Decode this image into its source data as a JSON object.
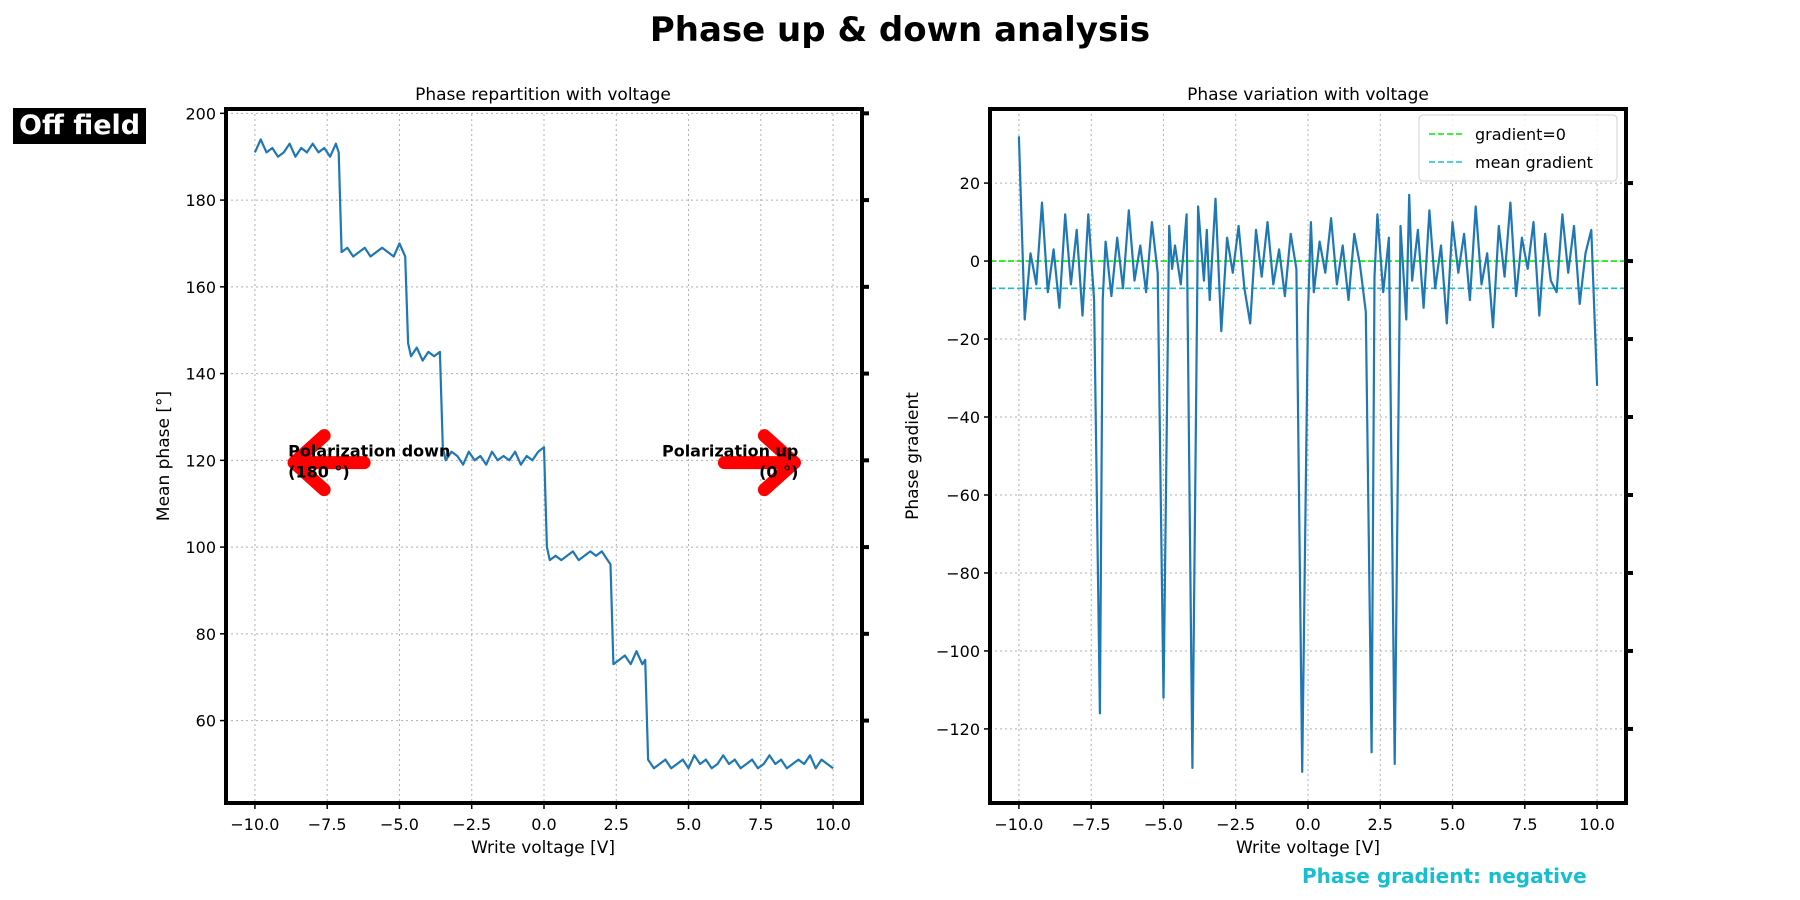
{
  "figure": {
    "title": "Phase up & down analysis",
    "badge": "Off field",
    "footnote": "Phase gradient: negative",
    "footnote_color": "#17becf"
  },
  "chart_data": [
    {
      "type": "line",
      "title": "Phase repartition with voltage",
      "xlabel": "Write voltage [V]",
      "ylabel": "Mean phase [°]",
      "xlim": [
        -11,
        11
      ],
      "ylim": [
        41,
        201
      ],
      "xticks": [
        -10,
        -7.5,
        -5,
        -2.5,
        0,
        2.5,
        5,
        7.5,
        10
      ],
      "xtick_labels": [
        "−10.0",
        "−7.5",
        "−5.0",
        "−2.5",
        "0.0",
        "2.5",
        "5.0",
        "7.5",
        "10.0"
      ],
      "yticks": [
        60,
        80,
        100,
        120,
        140,
        160,
        180,
        200
      ],
      "ytick_labels": [
        "60",
        "80",
        "100",
        "120",
        "140",
        "160",
        "180",
        "200"
      ],
      "grid": true,
      "series": [
        {
          "color": "#1f77b4",
          "x": [
            -10.0,
            -9.8,
            -9.6,
            -9.4,
            -9.2,
            -9.0,
            -8.8,
            -8.6,
            -8.4,
            -8.2,
            -8.0,
            -7.8,
            -7.6,
            -7.4,
            -7.2,
            -7.1,
            -7.0,
            -6.8,
            -6.6,
            -6.4,
            -6.2,
            -6.0,
            -5.8,
            -5.6,
            -5.4,
            -5.2,
            -5.0,
            -4.8,
            -4.7,
            -4.6,
            -4.4,
            -4.2,
            -4.0,
            -3.8,
            -3.6,
            -3.5,
            -3.4,
            -3.2,
            -3.0,
            -2.8,
            -2.6,
            -2.4,
            -2.2,
            -2.0,
            -1.8,
            -1.6,
            -1.4,
            -1.2,
            -1.0,
            -0.8,
            -0.6,
            -0.4,
            -0.2,
            0.0,
            0.1,
            0.2,
            0.4,
            0.6,
            0.8,
            1.0,
            1.2,
            1.4,
            1.6,
            1.8,
            2.0,
            2.2,
            2.3,
            2.4,
            2.6,
            2.8,
            3.0,
            3.2,
            3.4,
            3.5,
            3.6,
            3.8,
            4.0,
            4.2,
            4.4,
            4.6,
            4.8,
            5.0,
            5.2,
            5.4,
            5.6,
            5.8,
            6.0,
            6.2,
            6.4,
            6.6,
            6.8,
            7.0,
            7.2,
            7.4,
            7.6,
            7.8,
            8.0,
            8.2,
            8.4,
            8.6,
            8.8,
            9.0,
            9.2,
            9.4,
            9.6,
            9.8,
            10.0
          ],
          "y": [
            191,
            194,
            191,
            192,
            190,
            191,
            193,
            190,
            192,
            191,
            193,
            191,
            192,
            190,
            193,
            191,
            168,
            169,
            167,
            168,
            169,
            167,
            168,
            169,
            168,
            167,
            170,
            167,
            147,
            144,
            146,
            143,
            145,
            144,
            145,
            123,
            120,
            122,
            121,
            119,
            122,
            120,
            121,
            119,
            122,
            120,
            121,
            120,
            122,
            119,
            121,
            120,
            122,
            123,
            100,
            97,
            98,
            97,
            98,
            99,
            97,
            98,
            99,
            98,
            99,
            97,
            96,
            73,
            74,
            75,
            73,
            76,
            73,
            74,
            51,
            49,
            50,
            51,
            49,
            50,
            51,
            49,
            52,
            50,
            51,
            49,
            50,
            52,
            50,
            51,
            49,
            50,
            51,
            49,
            50,
            52,
            50,
            51,
            49,
            50,
            51,
            50,
            52,
            49,
            51,
            50,
            49
          ]
        }
      ],
      "annotations": [
        {
          "text_lines": [
            "Polarization down",
            "(180 °)"
          ],
          "x": -8.85,
          "y": 122,
          "arrow": "left",
          "arrow_color": "#ff0000"
        },
        {
          "text_lines": [
            "Polarization up",
            "(0 °)"
          ],
          "x": 8.8,
          "y": 122,
          "arrow": "right",
          "arrow_color": "#ff0000"
        }
      ]
    },
    {
      "type": "line",
      "title": "Phase variation with voltage",
      "xlabel": "Write voltage [V]",
      "ylabel": "Phase gradient",
      "xlim": [
        -11,
        11
      ],
      "ylim": [
        -139,
        39
      ],
      "xticks": [
        -10,
        -7.5,
        -5,
        -2.5,
        0,
        2.5,
        5,
        7.5,
        10
      ],
      "xtick_labels": [
        "−10.0",
        "−7.5",
        "−5.0",
        "−2.5",
        "0.0",
        "2.5",
        "5.0",
        "7.5",
        "10.0"
      ],
      "yticks": [
        -120,
        -100,
        -80,
        -60,
        -40,
        -20,
        0,
        20
      ],
      "ytick_labels": [
        "−120",
        "−100",
        "−80",
        "−60",
        "−40",
        "−20",
        "0",
        "20"
      ],
      "grid": true,
      "legend_position": "top-right",
      "series": [
        {
          "color": "#1f77b4",
          "x": [
            -10.0,
            -9.8,
            -9.6,
            -9.4,
            -9.2,
            -9.0,
            -8.8,
            -8.6,
            -8.4,
            -8.2,
            -8.0,
            -7.8,
            -7.6,
            -7.4,
            -7.2,
            -7.1,
            -7.0,
            -6.8,
            -6.6,
            -6.4,
            -6.2,
            -6.0,
            -5.8,
            -5.6,
            -5.4,
            -5.2,
            -5.0,
            -4.8,
            -4.7,
            -4.6,
            -4.4,
            -4.2,
            -4.0,
            -3.8,
            -3.6,
            -3.5,
            -3.4,
            -3.2,
            -3.0,
            -2.8,
            -2.6,
            -2.4,
            -2.2,
            -2.0,
            -1.8,
            -1.6,
            -1.4,
            -1.2,
            -1.0,
            -0.8,
            -0.6,
            -0.4,
            -0.2,
            0.0,
            0.1,
            0.2,
            0.4,
            0.6,
            0.8,
            1.0,
            1.2,
            1.4,
            1.6,
            1.8,
            2.0,
            2.2,
            2.3,
            2.4,
            2.6,
            2.8,
            3.0,
            3.2,
            3.4,
            3.5,
            3.6,
            3.8,
            4.0,
            4.2,
            4.4,
            4.6,
            4.8,
            5.0,
            5.2,
            5.4,
            5.6,
            5.8,
            6.0,
            6.2,
            6.4,
            6.6,
            6.8,
            7.0,
            7.2,
            7.4,
            7.6,
            7.8,
            8.0,
            8.2,
            8.4,
            8.6,
            8.8,
            9.0,
            9.2,
            9.4,
            9.6,
            9.8,
            10.0
          ],
          "y": [
            32,
            -15,
            2,
            -6,
            15,
            -8,
            3,
            -12,
            12,
            -6,
            8,
            -14,
            12,
            -10,
            -116,
            -10,
            5,
            -9,
            6,
            -7,
            13,
            -5,
            4,
            -8,
            10,
            -3,
            -112,
            9,
            -2,
            4,
            -6,
            12,
            -130,
            14,
            -5,
            8,
            -10,
            16,
            -18,
            6,
            -3,
            9,
            -7,
            -16,
            8,
            -4,
            10,
            -6,
            3,
            -9,
            7,
            -2,
            -131,
            -13,
            10,
            -8,
            5,
            -3,
            11,
            -6,
            4,
            -10,
            7,
            -1,
            -13,
            -126,
            -4,
            12,
            -8,
            6,
            -129,
            9,
            -15,
            17,
            -5,
            8,
            -12,
            13,
            -7,
            4,
            -16,
            10,
            -3,
            7,
            -10,
            14,
            -6,
            2,
            -17,
            9,
            -4,
            15,
            -9,
            6,
            -2,
            10,
            -14,
            7,
            -5,
            -8,
            12,
            -3,
            9,
            -11,
            2,
            8,
            -32
          ]
        }
      ],
      "reference_lines": [
        {
          "name": "gradient=0",
          "y": 0,
          "color": "#00ee00",
          "style": "dashed"
        },
        {
          "name": "mean gradient",
          "y": -7,
          "color": "#17becf",
          "style": "dashed"
        }
      ]
    }
  ]
}
